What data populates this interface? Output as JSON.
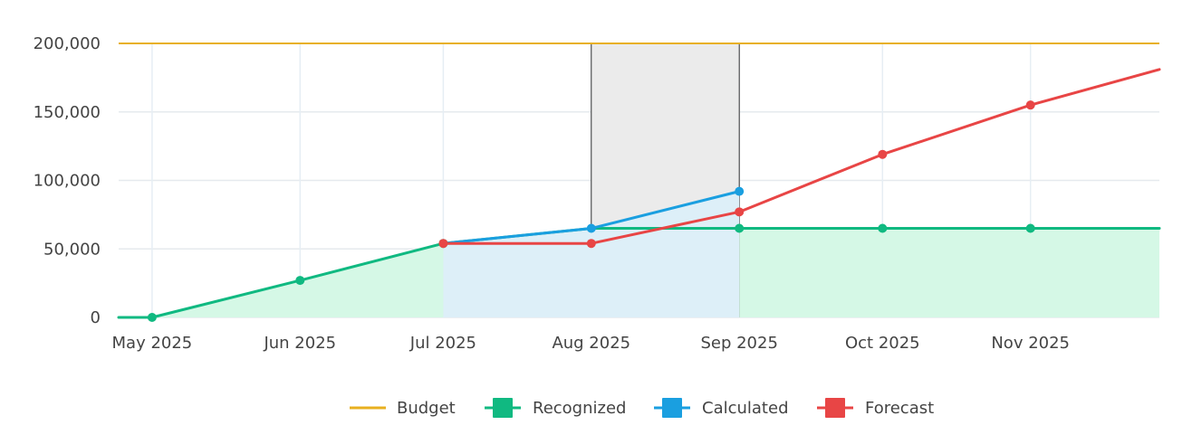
{
  "chart_data": {
    "type": "line",
    "x": [
      "2025-05-01",
      "2025-06-01",
      "2025-07-01",
      "2025-08-01",
      "2025-09-01",
      "2025-10-01",
      "2025-11-01"
    ],
    "x_tick_labels": [
      "May 2025",
      "Jun 2025",
      "Jul 2025",
      "Aug 2025",
      "Sep 2025",
      "Oct 2025",
      "Nov 2025"
    ],
    "y_tick_labels": [
      "0",
      "50,000",
      "100,000",
      "150,000",
      "200,000"
    ],
    "y_ticks": [
      0,
      50000,
      100000,
      150000,
      200000
    ],
    "ylim": [
      0,
      200000
    ],
    "xlim": [
      "2025-04-24",
      "2025-11-28"
    ],
    "grid": true,
    "legend_position": "bottom-center",
    "highlight_range": [
      "2025-08-01",
      "2025-09-01"
    ],
    "budget": {
      "name": "Budget",
      "value": 200000,
      "color": "#e8b020"
    },
    "series": [
      {
        "name": "Recognized",
        "color": "#10b981",
        "fill": "#d5f8e6",
        "area": true,
        "points": [
          {
            "x": "2025-04-24",
            "y": 0,
            "marker": false
          },
          {
            "x": "2025-05-01",
            "y": 0,
            "marker": true
          },
          {
            "x": "2025-06-01",
            "y": 27000,
            "marker": true
          },
          {
            "x": "2025-07-01",
            "y": 54000,
            "marker": true
          },
          {
            "x": "2025-08-01",
            "y": 65000,
            "marker": false
          },
          {
            "x": "2025-09-01",
            "y": 65000,
            "marker": true
          },
          {
            "x": "2025-10-01",
            "y": 65000,
            "marker": true
          },
          {
            "x": "2025-11-01",
            "y": 65000,
            "marker": true
          },
          {
            "x": "2025-11-28",
            "y": 65000,
            "marker": false
          }
        ]
      },
      {
        "name": "Calculated",
        "color": "#1a9fe0",
        "fill": "#ddeff8",
        "area": true,
        "points": [
          {
            "x": "2025-07-01",
            "y": 54000,
            "marker": false
          },
          {
            "x": "2025-08-01",
            "y": 65000,
            "marker": true
          },
          {
            "x": "2025-09-01",
            "y": 92000,
            "marker": true
          }
        ]
      },
      {
        "name": "Forecast",
        "color": "#e84545",
        "fill": null,
        "area": false,
        "points": [
          {
            "x": "2025-07-01",
            "y": 54000,
            "marker": true
          },
          {
            "x": "2025-08-01",
            "y": 54000,
            "marker": true
          },
          {
            "x": "2025-09-01",
            "y": 77000,
            "marker": true
          },
          {
            "x": "2025-10-01",
            "y": 119000,
            "marker": true
          },
          {
            "x": "2025-11-01",
            "y": 155000,
            "marker": true
          },
          {
            "x": "2025-11-28",
            "y": 181000,
            "marker": false
          }
        ]
      }
    ],
    "legend": [
      "Budget",
      "Recognized",
      "Calculated",
      "Forecast"
    ]
  }
}
